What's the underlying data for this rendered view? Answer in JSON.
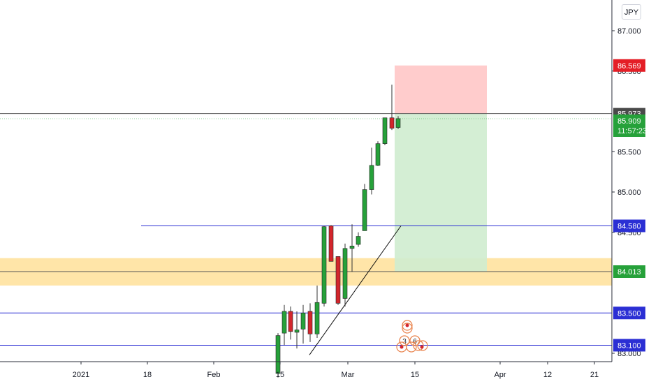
{
  "currency": "JPY",
  "chart_data": {
    "type": "candlestick",
    "ylim": [
      82.98,
      87.3
    ],
    "price_ticks": [
      "87.000",
      "86.500",
      "85.500",
      "85.000",
      "84.500",
      "83.000"
    ],
    "time_ticks": [
      {
        "label": "2021",
        "date": "2021-01-01"
      },
      {
        "label": "18",
        "date": "2021-01-18"
      },
      {
        "label": "Feb",
        "date": "2021-02-01"
      },
      {
        "label": "15",
        "date": "2021-02-15"
      },
      {
        "label": "Mar",
        "date": "2021-03-01"
      },
      {
        "label": "15",
        "date": "2021-03-15"
      },
      {
        "label": "Apr",
        "date": "2021-04-01"
      },
      {
        "label": "12",
        "date": "2021-04-12"
      },
      {
        "label": "21",
        "date": "2021-04-21"
      }
    ],
    "candles": [
      {
        "date": "2021-02-15",
        "open": 82.75,
        "high": 83.25,
        "low": 82.7,
        "close": 83.22
      },
      {
        "date": "2021-02-16",
        "open": 83.25,
        "high": 83.6,
        "low": 83.1,
        "close": 83.52
      },
      {
        "date": "2021-02-17",
        "open": 83.52,
        "high": 83.58,
        "low": 83.17,
        "close": 83.27
      },
      {
        "date": "2021-02-18",
        "open": 83.26,
        "high": 83.52,
        "low": 83.06,
        "close": 83.29
      },
      {
        "date": "2021-02-19",
        "open": 83.3,
        "high": 83.6,
        "low": 83.12,
        "close": 83.5
      },
      {
        "date": "2021-02-22",
        "open": 83.52,
        "high": 83.62,
        "low": 83.14,
        "close": 83.24
      },
      {
        "date": "2021-02-23",
        "open": 83.24,
        "high": 83.84,
        "low": 83.19,
        "close": 83.63
      },
      {
        "date": "2021-02-24",
        "open": 83.62,
        "high": 84.58,
        "low": 83.58,
        "close": 84.57
      },
      {
        "date": "2021-02-25",
        "open": 84.58,
        "high": 84.59,
        "low": 84.14,
        "close": 84.14
      },
      {
        "date": "2021-02-26",
        "open": 84.2,
        "high": 84.2,
        "low": 83.6,
        "close": 83.62
      },
      {
        "date": "2021-03-01",
        "open": 83.68,
        "high": 84.36,
        "low": 83.58,
        "close": 84.3
      },
      {
        "date": "2021-03-02",
        "open": 84.3,
        "high": 84.6,
        "low": 84.01,
        "close": 84.33
      },
      {
        "date": "2021-03-03",
        "open": 84.35,
        "high": 84.5,
        "low": 84.32,
        "close": 84.45
      },
      {
        "date": "2021-03-04",
        "open": 84.52,
        "high": 85.1,
        "low": 84.52,
        "close": 85.03
      },
      {
        "date": "2021-03-05",
        "open": 85.03,
        "high": 85.55,
        "low": 84.97,
        "close": 85.33
      },
      {
        "date": "2021-03-08",
        "open": 85.33,
        "high": 85.63,
        "low": 85.32,
        "close": 85.6
      },
      {
        "date": "2021-03-09",
        "open": 85.6,
        "high": 85.92,
        "low": 85.58,
        "close": 85.92
      },
      {
        "date": "2021-03-10",
        "open": 85.92,
        "high": 86.33,
        "low": 85.77,
        "close": 85.79
      },
      {
        "date": "2021-03-11",
        "open": 85.8,
        "high": 85.94,
        "low": 85.78,
        "close": 85.91
      }
    ],
    "horizontal_lines": [
      {
        "price": 85.973,
        "label": "85.973",
        "color": "#555555"
      },
      {
        "price": 84.58,
        "label": "84.580",
        "color": "#2b2fd4"
      },
      {
        "price": 84.013,
        "label": "84.013",
        "color": "#555555"
      },
      {
        "price": 83.5,
        "label": "83.500",
        "color": "#2b2fd4"
      },
      {
        "price": 83.1,
        "label": "83.100",
        "color": "#2b2fd4"
      }
    ],
    "support_zone": {
      "top": 84.18,
      "bottom": 83.84,
      "color": "#ffe099"
    },
    "position": {
      "start_date": "2021-03-11",
      "end_date": "2021-03-29",
      "stop": 86.569,
      "entry": 85.973,
      "target": 84.013,
      "stop_label": "86.569",
      "target_label": "84.013",
      "stop_color": "#ffcccc",
      "target_color": "#cfeccf"
    },
    "trendline": {
      "from": {
        "date": "2021-02-19",
        "price": 82.98
      },
      "to": {
        "date": "2021-03-11",
        "price": 84.58
      }
    },
    "last_price": {
      "label": "85.909",
      "countdown": "11:57:23",
      "color": "#26a13a"
    },
    "events": [
      {
        "date": "2021-03-12",
        "text": "3"
      },
      {
        "date": "2021-03-14",
        "text": "6"
      }
    ],
    "colors": {
      "up": "#26a13a",
      "down": "#d3262c",
      "blue_label": "#2b2fd4",
      "red_label": "#e41e26",
      "gray_label": "#4a4a4a"
    }
  }
}
